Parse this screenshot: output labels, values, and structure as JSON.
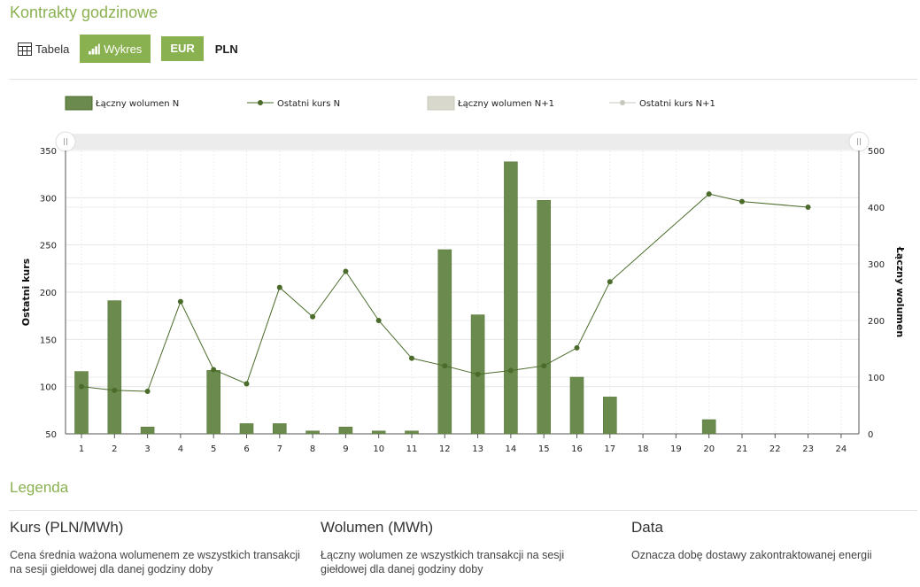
{
  "page": {
    "title": "Kontrakty godzinowe"
  },
  "toolbar": {
    "table_label": "Tabela",
    "chart_label": "Wykres",
    "eur_label": "EUR",
    "pln_label": "PLN"
  },
  "colors": {
    "accent": "#8ab150",
    "bar_n": "#6b8a4e",
    "line_n": "#4a6b2a",
    "bar_n1": "#d8d8cc",
    "line_n1": "#c8c8c0"
  },
  "chart_data": {
    "type": "bar+line",
    "legend_position": "top",
    "legend": [
      {
        "name": "Łączny wolumen N",
        "kind": "bar"
      },
      {
        "name": "Ostatni kurs N",
        "kind": "line"
      },
      {
        "name": "Łączny wolumen N+1",
        "kind": "bar"
      },
      {
        "name": "Ostatni kurs N+1",
        "kind": "line"
      }
    ],
    "categories": [
      "1",
      "2",
      "3",
      "4",
      "5",
      "6",
      "7",
      "8",
      "9",
      "10",
      "11",
      "12",
      "13",
      "14",
      "15",
      "16",
      "17",
      "18",
      "19",
      "20",
      "21",
      "22",
      "23",
      "24"
    ],
    "volume_n": [
      110,
      235,
      12,
      0,
      112,
      18,
      18,
      5,
      12,
      5,
      5,
      325,
      210,
      480,
      412,
      100,
      65,
      0,
      0,
      25,
      0,
      0,
      0,
      0
    ],
    "price_n": [
      100,
      96,
      95,
      190,
      118,
      103,
      205,
      174,
      222,
      170,
      130,
      122,
      113,
      117,
      122,
      141,
      211,
      null,
      null,
      304,
      296,
      null,
      290,
      null
    ],
    "y_left": {
      "label": "Ostatni kurs",
      "ticks": [
        50,
        100,
        150,
        200,
        250,
        300,
        350
      ],
      "range": [
        50,
        350
      ]
    },
    "y_right": {
      "label": "Łączny wolumen",
      "ticks": [
        0,
        100,
        200,
        300,
        400,
        500
      ],
      "range": [
        0,
        500
      ]
    },
    "grid": true
  },
  "legend_section": {
    "title": "Legenda",
    "items": [
      {
        "heading": "Kurs (PLN/MWh)",
        "text": "Cena średnia ważona wolumenem ze wszystkich transakcji na sesji giełdowej dla danej godziny doby"
      },
      {
        "heading": "Wolumen (MWh)",
        "text": "Łączny wolumen ze wszystkich transakcji na sesji giełdowej dla danej godziny doby"
      },
      {
        "heading": "Data",
        "text": "Oznacza dobę dostawy zakontraktowanej energii"
      }
    ]
  }
}
